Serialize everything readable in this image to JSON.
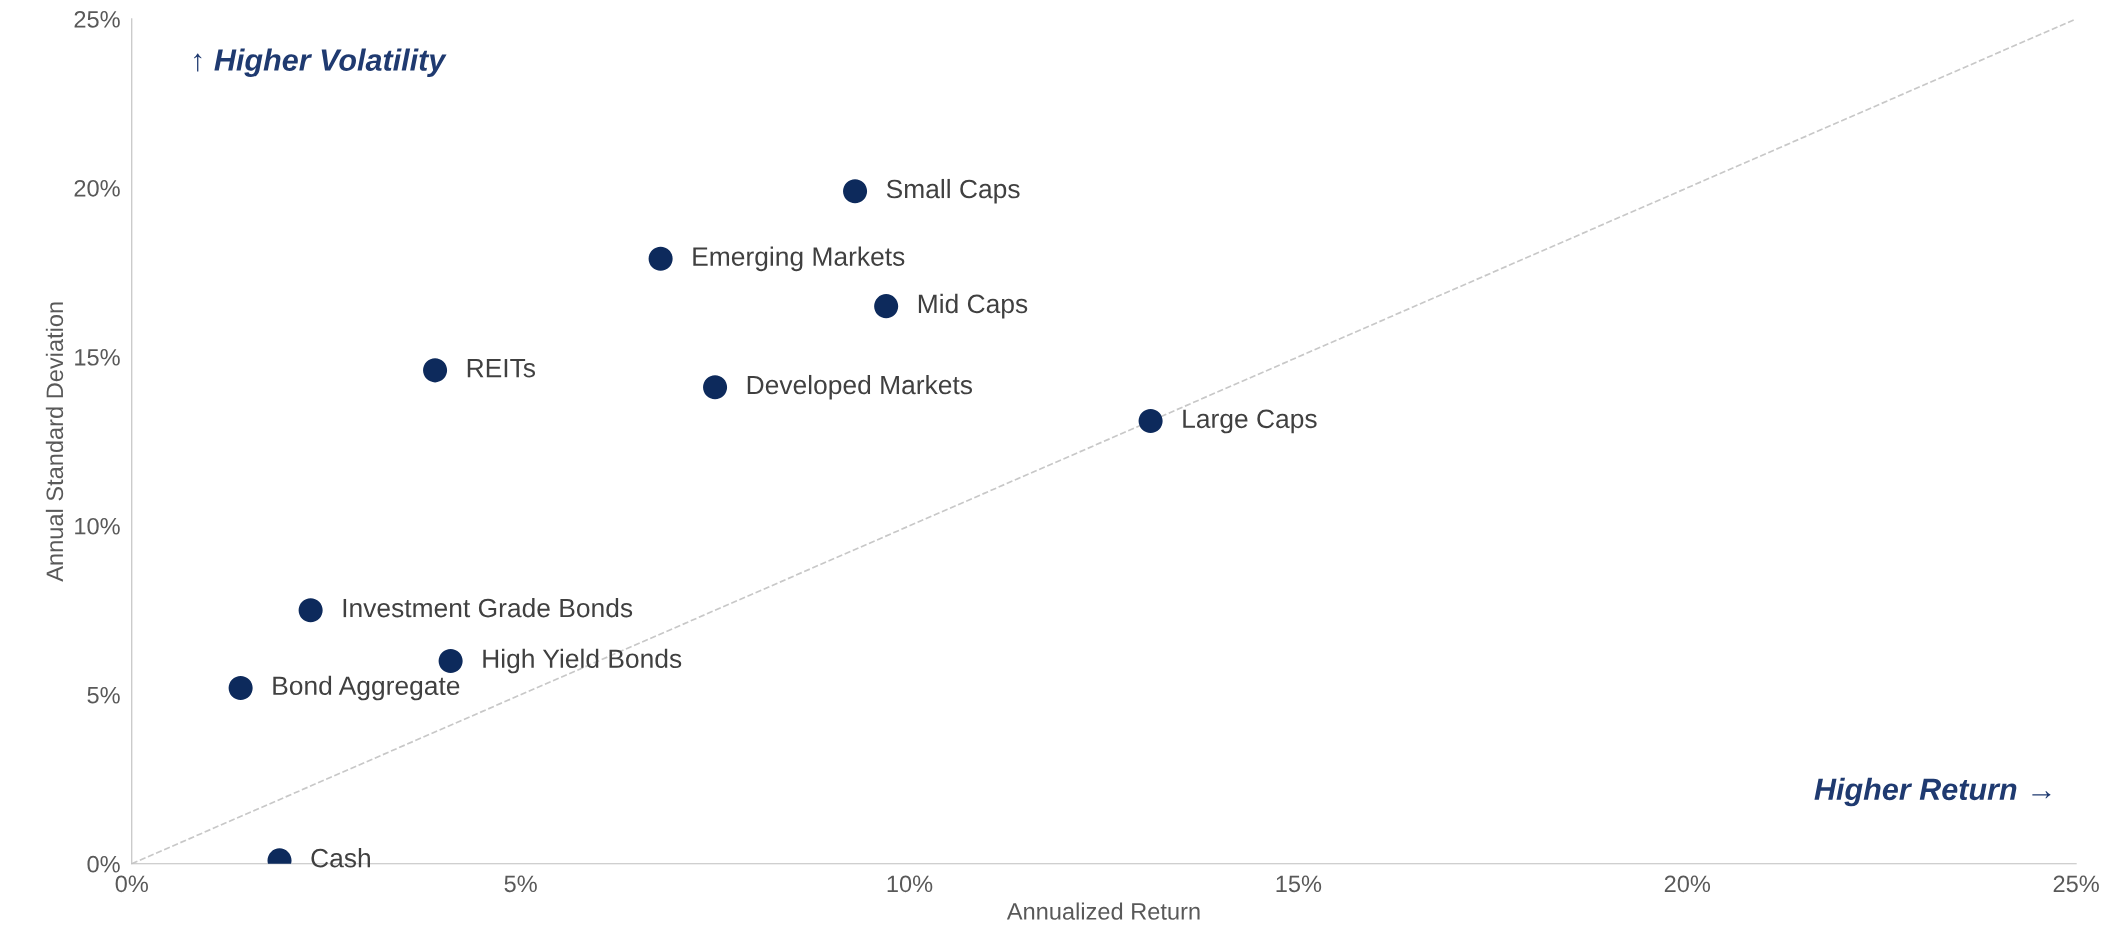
{
  "chart_data": {
    "type": "scatter",
    "xlabel": "Annualized Return",
    "ylabel": "Annual Standard Deviation",
    "xlim": [
      0,
      25
    ],
    "ylim": [
      0,
      25
    ],
    "xticks": [
      {
        "value": 0,
        "label": "0%"
      },
      {
        "value": 5,
        "label": "5%"
      },
      {
        "value": 10,
        "label": "10%"
      },
      {
        "value": 15,
        "label": "15%"
      },
      {
        "value": 20,
        "label": "20%"
      },
      {
        "value": 25,
        "label": "25%"
      }
    ],
    "yticks": [
      {
        "value": 0,
        "label": "0%"
      },
      {
        "value": 5,
        "label": "5%"
      },
      {
        "value": 10,
        "label": "10%"
      },
      {
        "value": 15,
        "label": "15%"
      },
      {
        "value": 20,
        "label": "20%"
      },
      {
        "value": 25,
        "label": "25%"
      }
    ],
    "grid": false,
    "legend": false,
    "marker": "circle",
    "series": [
      {
        "color": "#0d2a5c",
        "x": [
          9.3,
          6.8,
          9.7,
          3.9,
          7.5,
          13.1,
          2.3,
          4.1,
          1.4,
          1.9
        ],
        "values": [
          19.9,
          17.9,
          16.5,
          14.6,
          14.1,
          13.1,
          7.5,
          6.0,
          5.2,
          0.1
        ]
      },
      {
        "type": "line",
        "color": "#c8c8c8",
        "line_style": "dashed",
        "marker": "none",
        "x": [
          0,
          25
        ],
        "values": [
          0,
          25
        ]
      }
    ],
    "annotations": [
      "↑ Higher Volatility",
      "Higher Return →",
      {
        "text": "Small Caps",
        "x": 9.3,
        "y": 19.9
      },
      {
        "text": "Emerging Markets",
        "x": 6.8,
        "y": 17.9
      },
      {
        "text": "Mid Caps",
        "x": 9.7,
        "y": 16.5
      },
      {
        "text": "REITs",
        "x": 3.9,
        "y": 14.6
      },
      {
        "text": "Developed Markets",
        "x": 7.5,
        "y": 14.1
      },
      {
        "text": "Large Caps",
        "x": 13.1,
        "y": 13.1
      },
      {
        "text": "Investment Grade Bonds",
        "x": 2.3,
        "y": 7.5
      },
      {
        "text": "High Yield Bonds",
        "x": 4.1,
        "y": 6.0
      },
      {
        "text": "Bond Aggregate",
        "x": 1.4,
        "y": 5.2
      },
      {
        "text": "Cash",
        "x": 1.9,
        "y": 0.1
      }
    ]
  }
}
